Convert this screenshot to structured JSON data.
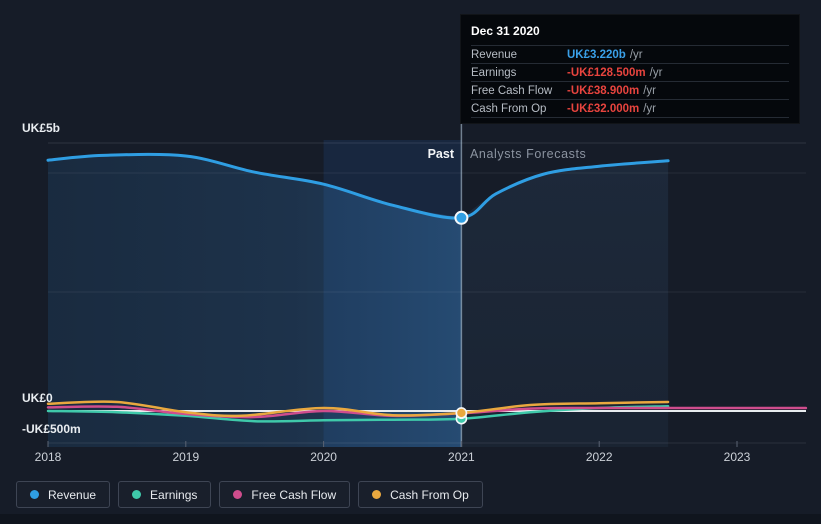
{
  "tooltip": {
    "title": "Dec 31 2020",
    "rows": [
      {
        "label": "Revenue",
        "value": "UK£3.220b",
        "suffix": "/yr",
        "color": "#3aa0e8"
      },
      {
        "label": "Earnings",
        "value": "-UK£128.500m",
        "suffix": "/yr",
        "color": "#e8443e"
      },
      {
        "label": "Free Cash Flow",
        "value": "-UK£38.900m",
        "suffix": "/yr",
        "color": "#e8443e"
      },
      {
        "label": "Cash From Op",
        "value": "-UK£32.000m",
        "suffix": "/yr",
        "color": "#e8443e"
      }
    ]
  },
  "y_axis": {
    "labels": [
      "UK£5b",
      "UK£0",
      "-UK£500m"
    ]
  },
  "x_axis": {
    "ticks": [
      "2018",
      "2019",
      "2020",
      "2021",
      "2022",
      "2023"
    ]
  },
  "zones": {
    "past_label": "Past",
    "forecast_label": "Analysts Forecasts"
  },
  "legend": {
    "items": [
      {
        "label": "Revenue",
        "color": "#2f9ee3"
      },
      {
        "label": "Earnings",
        "color": "#3fc9aa"
      },
      {
        "label": "Free Cash Flow",
        "color": "#cf4d8d"
      },
      {
        "label": "Cash From Op",
        "color": "#e9a83f"
      }
    ]
  },
  "chart_data": {
    "type": "line",
    "title": "Earnings and Revenue Growth — Past and Analysts Forecasts",
    "x_unit": "calendar year",
    "y_unit": "UK£ billions",
    "ylim": [
      -0.6,
      5
    ],
    "xlim": [
      2018,
      2023.5
    ],
    "grid": "horizontal",
    "legend_position": "bottom",
    "past_forecast_boundary": 2021,
    "highlight_band_x": [
      2020,
      2021
    ],
    "y_gridline_values": [
      5,
      0,
      -0.5
    ],
    "series": [
      {
        "name": "Revenue",
        "color": "#2f9ee3",
        "area": true,
        "x": [
          2018,
          2018.4,
          2019,
          2019.5,
          2020,
          2020.5,
          2021,
          2021.25,
          2021.6,
          2022,
          2022.5
        ],
        "values": [
          4.18,
          4.26,
          4.25,
          3.98,
          3.78,
          3.43,
          3.22,
          3.62,
          3.95,
          4.08,
          4.17
        ]
      },
      {
        "name": "Earnings",
        "color": "#3fc9aa",
        "area": false,
        "x": [
          2018,
          2018.5,
          2019,
          2019.5,
          2020,
          2020.5,
          2021,
          2021.5,
          2022,
          2022.5
        ],
        "values": [
          0.0,
          -0.02,
          -0.08,
          -0.17,
          -0.155,
          -0.145,
          -0.1285,
          -0.02,
          0.05,
          0.08
        ]
      },
      {
        "name": "Free Cash Flow",
        "color": "#cf4d8d",
        "area": false,
        "x": [
          2018,
          2018.5,
          2019,
          2019.5,
          2020,
          2020.5,
          2021,
          2021.5,
          2022,
          2023,
          2023.5
        ],
        "values": [
          0.06,
          0.07,
          -0.05,
          -0.1,
          0.0,
          -0.08,
          -0.0389,
          0.04,
          0.05,
          0.05,
          0.05
        ]
      },
      {
        "name": "Cash From Op",
        "color": "#e9a83f",
        "area": false,
        "x": [
          2018,
          2018.5,
          2019,
          2019.4,
          2020,
          2020.5,
          2021,
          2021.5,
          2022,
          2022.5
        ],
        "values": [
          0.12,
          0.15,
          -0.02,
          -0.08,
          0.05,
          -0.07,
          -0.032,
          0.1,
          0.13,
          0.15
        ]
      }
    ],
    "markers": [
      {
        "series": "Earnings",
        "x": 2021,
        "value": -0.1285,
        "color": "#3fc9aa"
      },
      {
        "series": "Free Cash Flow",
        "x": 2021,
        "value": -0.0389,
        "color": "#cf4d8d"
      },
      {
        "series": "Cash From Op",
        "x": 2021,
        "value": -0.032,
        "color": "#e9a83f"
      },
      {
        "series": "Revenue",
        "x": 2021,
        "value": 3.22,
        "color": "#2f9ee3"
      }
    ]
  }
}
